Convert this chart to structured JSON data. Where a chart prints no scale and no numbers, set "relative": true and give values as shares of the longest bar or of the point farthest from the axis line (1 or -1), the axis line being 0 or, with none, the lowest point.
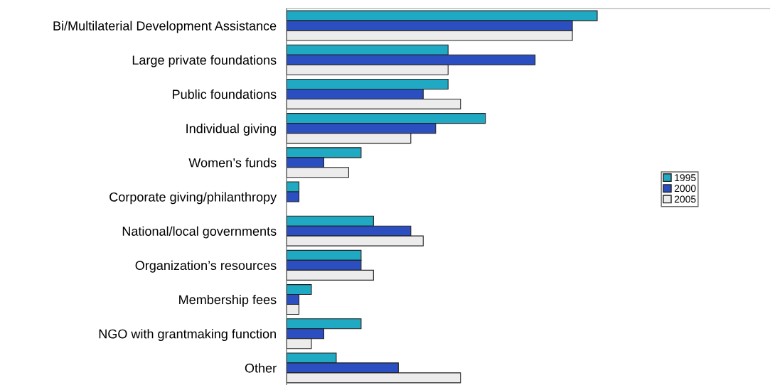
{
  "chart_data": {
    "type": "bar",
    "orientation": "horizontal",
    "relative": true,
    "legend": "right",
    "grid": false,
    "categories": [
      "Bi/Multilaterial Development Assistance",
      "Large private foundations",
      "Public foundations",
      "Individual giving",
      "Women’s funds",
      "Corporate giving/philanthropy",
      "National/local governments",
      "Organization’s resources",
      "Membership fees",
      "NGO with grantmaking function",
      "Other"
    ],
    "series": [
      {
        "name": "1995",
        "color": "#20a9c2",
        "values": [
          1.0,
          0.52,
          0.52,
          0.64,
          0.24,
          0.04,
          0.28,
          0.24,
          0.08,
          0.24,
          0.16
        ]
      },
      {
        "name": "2000",
        "color": "#2b4fc0",
        "values": [
          0.92,
          0.8,
          0.44,
          0.48,
          0.12,
          0.04,
          0.4,
          0.24,
          0.04,
          0.12,
          0.36
        ]
      },
      {
        "name": "2005",
        "color": "#ececec",
        "values": [
          0.92,
          0.52,
          0.56,
          0.4,
          0.2,
          null,
          0.44,
          0.28,
          0.04,
          0.08,
          0.56
        ]
      }
    ]
  }
}
